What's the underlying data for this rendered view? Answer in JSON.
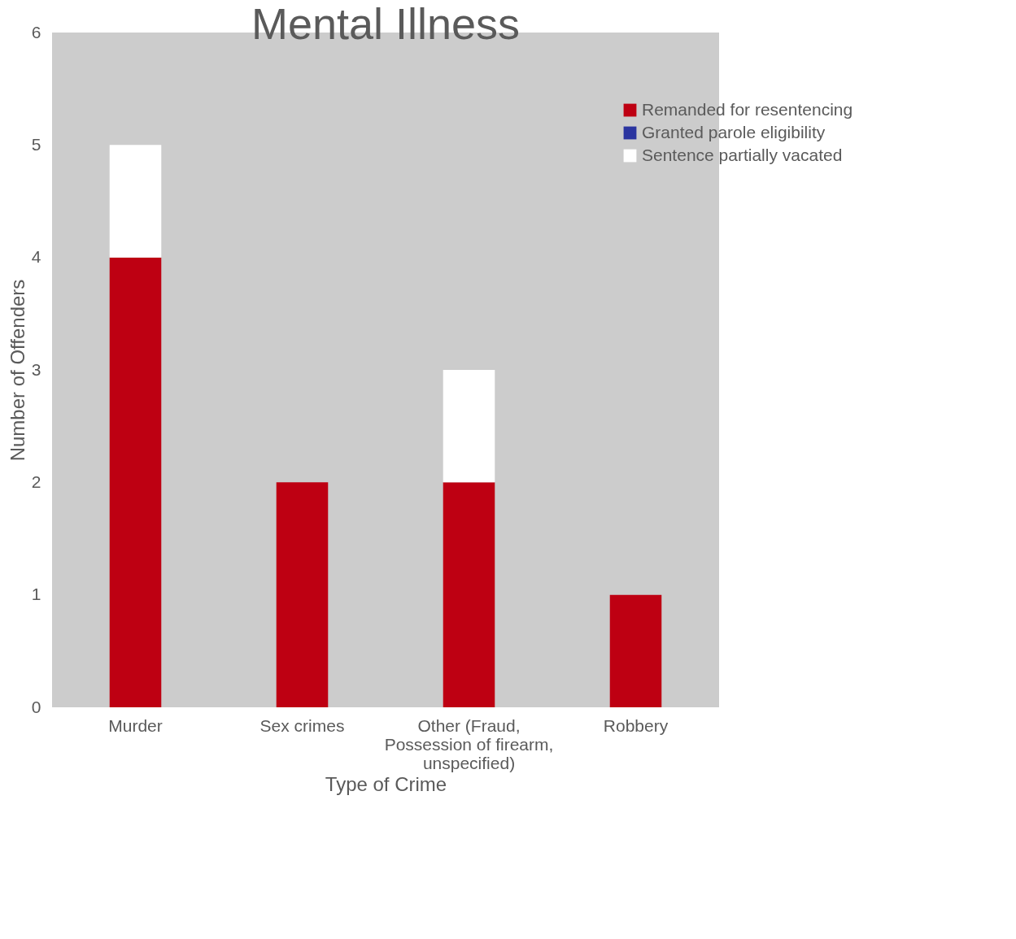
{
  "chart_data": {
    "type": "bar",
    "title": "Mental Illness",
    "xlabel": "Type of Crime",
    "ylabel": "Number of Offenders",
    "categories": [
      "Murder",
      "Sex crimes",
      "Other (Fraud, Possession of firearm, unspecified)",
      "Robbery"
    ],
    "series": [
      {
        "name": "Remanded for resentencing",
        "color": "#be0012",
        "values": [
          4,
          2,
          2,
          1
        ]
      },
      {
        "name": "Granted parole eligibility",
        "color": "#2b35a0",
        "values": [
          0,
          0,
          0,
          0
        ]
      },
      {
        "name": "Sentence partially vacated",
        "color": "#ffffff",
        "values": [
          1,
          0,
          1,
          0
        ]
      }
    ],
    "stacked": true,
    "ylim": [
      0,
      6
    ],
    "yticks": [
      0,
      1,
      2,
      3,
      4,
      5,
      6
    ],
    "grid": false,
    "legend": "top right"
  }
}
